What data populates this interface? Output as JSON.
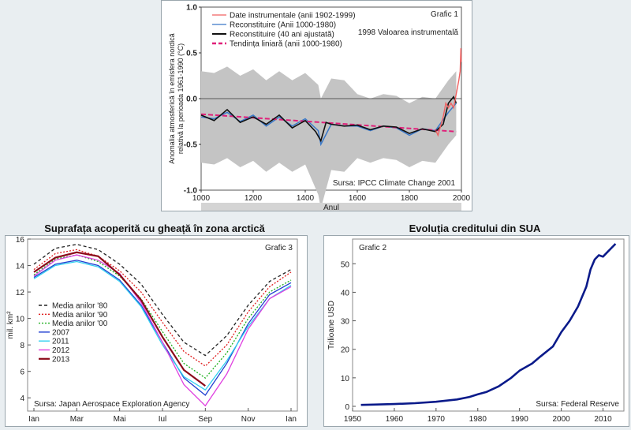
{
  "chart_data": [
    {
      "type": "line",
      "panel_label": "Grafic 1",
      "title": "",
      "xlabel": "Anul",
      "ylabel": "Anomalia atmosferică în emisfera nordică relativă la perioada 1961-1990 (°C)",
      "xlim": [
        1000,
        2000
      ],
      "ylim": [
        -1.0,
        1.0
      ],
      "x_ticks": [
        "1000",
        "1200",
        "1400",
        "1600",
        "1800",
        "2000"
      ],
      "y_ticks": [
        "1.0",
        "0.5",
        "0.0",
        "-0.5",
        "-1.0"
      ],
      "annotation": "1998 Valoarea instrumentală",
      "source": "Sursa: IPCC Climate Change 2001",
      "series": [
        {
          "name": "Date instrumentale (anii 1902-1999)",
          "color": "#f06060",
          "x": [
            1902,
            1910,
            1920,
            1930,
            1940,
            1950,
            1960,
            1970,
            1980,
            1990,
            1995,
            1998,
            1999
          ],
          "y": [
            -0.35,
            -0.4,
            -0.3,
            -0.2,
            -0.05,
            -0.1,
            -0.05,
            -0.1,
            0.05,
            0.2,
            0.3,
            0.55,
            0.4
          ]
        },
        {
          "name": "Reconstituire (Anii 1000-1980)",
          "color": "#3a78c8",
          "x": [
            1000,
            1050,
            1100,
            1150,
            1200,
            1250,
            1300,
            1350,
            1400,
            1450,
            1460,
            1500,
            1550,
            1600,
            1650,
            1700,
            1750,
            1800,
            1850,
            1900,
            1950,
            1980
          ],
          "y": [
            -0.2,
            -0.22,
            -0.15,
            -0.25,
            -0.18,
            -0.3,
            -0.2,
            -0.3,
            -0.22,
            -0.35,
            -0.5,
            -0.28,
            -0.3,
            -0.3,
            -0.35,
            -0.3,
            -0.32,
            -0.4,
            -0.33,
            -0.35,
            -0.15,
            -0.05
          ]
        },
        {
          "name": "Reconstituire (40 ani ajustată)",
          "color": "#111111",
          "x": [
            1000,
            1050,
            1100,
            1150,
            1200,
            1250,
            1300,
            1350,
            1400,
            1440,
            1460,
            1480,
            1500,
            1550,
            1600,
            1650,
            1700,
            1750,
            1800,
            1850,
            1900,
            1930,
            1950,
            1970,
            1980
          ],
          "y": [
            -0.18,
            -0.24,
            -0.12,
            -0.26,
            -0.2,
            -0.28,
            -0.18,
            -0.32,
            -0.24,
            -0.36,
            -0.46,
            -0.26,
            -0.28,
            -0.3,
            -0.29,
            -0.34,
            -0.3,
            -0.31,
            -0.38,
            -0.33,
            -0.36,
            -0.28,
            -0.05,
            0.02,
            -0.05
          ]
        },
        {
          "name": "Tendința liniară (anii 1000-1980)",
          "color": "#e0207a",
          "x": [
            1000,
            1980
          ],
          "y": [
            -0.17,
            -0.36
          ]
        }
      ]
    },
    {
      "type": "line",
      "panel_label": "Grafic 3",
      "title": "Suprafața acoperită cu gheață în zona arctică",
      "xlabel": "",
      "ylabel": "mil. km²",
      "x_ticks": [
        "Ian",
        "Mar",
        "Mai",
        "Iul",
        "Sep",
        "Nov",
        "Ian"
      ],
      "ylim": [
        3,
        16
      ],
      "y_ticks": [
        "4",
        "6",
        "8",
        "10",
        "12",
        "14",
        "16"
      ],
      "source": "Sursa: Japan Aerospace Exploration Agency",
      "months": [
        1,
        2,
        3,
        4,
        5,
        6,
        7,
        8,
        9,
        10,
        11,
        12,
        13
      ],
      "series": [
        {
          "name": "Media anilor '80",
          "color": "#222222",
          "dash": "4,3",
          "values": [
            14.1,
            15.3,
            15.6,
            15.2,
            14.1,
            12.6,
            10.3,
            8.2,
            7.2,
            8.7,
            11.0,
            12.8,
            13.7
          ]
        },
        {
          "name": "Media anilor '90",
          "color": "#e02020",
          "dash": "2,2",
          "values": [
            13.7,
            14.9,
            15.2,
            14.7,
            13.6,
            12.0,
            9.7,
            7.5,
            6.4,
            8.0,
            10.5,
            12.4,
            13.5
          ]
        },
        {
          "name": "Media anilor '00",
          "color": "#20b020",
          "dash": "2,2",
          "values": [
            13.3,
            14.5,
            14.8,
            14.3,
            13.2,
            11.5,
            9.0,
            6.6,
            5.5,
            7.4,
            10.0,
            12.0,
            12.9
          ]
        },
        {
          "name": "2007",
          "color": "#2040d0",
          "values": [
            13.1,
            14.1,
            14.4,
            14.0,
            12.9,
            11.0,
            8.2,
            5.5,
            4.2,
            6.6,
            9.6,
            11.8,
            12.7
          ]
        },
        {
          "name": "2011",
          "color": "#30d0f0",
          "values": [
            13.0,
            14.0,
            14.3,
            13.9,
            12.8,
            10.9,
            8.0,
            5.6,
            4.6,
            6.8,
            9.4,
            11.5,
            12.5
          ]
        },
        {
          "name": "2012",
          "color": "#e040e0",
          "values": [
            13.2,
            14.4,
            14.8,
            14.4,
            13.4,
            11.2,
            8.2,
            5.0,
            3.4,
            5.8,
            9.2,
            11.5,
            12.4
          ]
        },
        {
          "name": "2013",
          "color": "#8b0a1a",
          "values": [
            13.5,
            14.6,
            15.0,
            14.7,
            13.3,
            11.4,
            8.6,
            6.1,
            4.9,
            null,
            null,
            null,
            null
          ]
        }
      ]
    },
    {
      "type": "line",
      "panel_label": "Grafic 2",
      "title": "Evoluția creditului din SUA",
      "xlabel": "",
      "ylabel": "Trilioane USD",
      "xlim": [
        1950,
        2015
      ],
      "ylim": [
        0,
        57
      ],
      "x_ticks": [
        "1950",
        "1960",
        "1970",
        "1980",
        "1990",
        "2000",
        "2010"
      ],
      "y_ticks": [
        "0",
        "10",
        "20",
        "30",
        "40",
        "50"
      ],
      "source": "Sursa: Federal Reserve",
      "series": [
        {
          "name": "",
          "color": "#0a1a8a",
          "x": [
            1952,
            1955,
            1960,
            1965,
            1970,
            1975,
            1978,
            1980,
            1982,
            1985,
            1988,
            1990,
            1993,
            1995,
            1998,
            2000,
            2002,
            2004,
            2006,
            2007,
            2008,
            2009,
            2010,
            2011,
            2012,
            2013
          ],
          "y": [
            0.5,
            0.6,
            0.8,
            1.1,
            1.6,
            2.4,
            3.3,
            4.2,
            5.0,
            7.0,
            10.0,
            12.5,
            15.0,
            17.5,
            21.0,
            26.0,
            30.0,
            35.0,
            42.0,
            48.0,
            51.5,
            53.0,
            52.5,
            54.0,
            55.5,
            57.0
          ]
        }
      ]
    }
  ],
  "legend1_labels": [
    "Date instrumentale (anii 1902-1999)",
    "Reconstituire (Anii 1000-1980)",
    "Reconstituire (40 ani ajustată)",
    "Tendința liniară (anii 1000-1980)"
  ]
}
